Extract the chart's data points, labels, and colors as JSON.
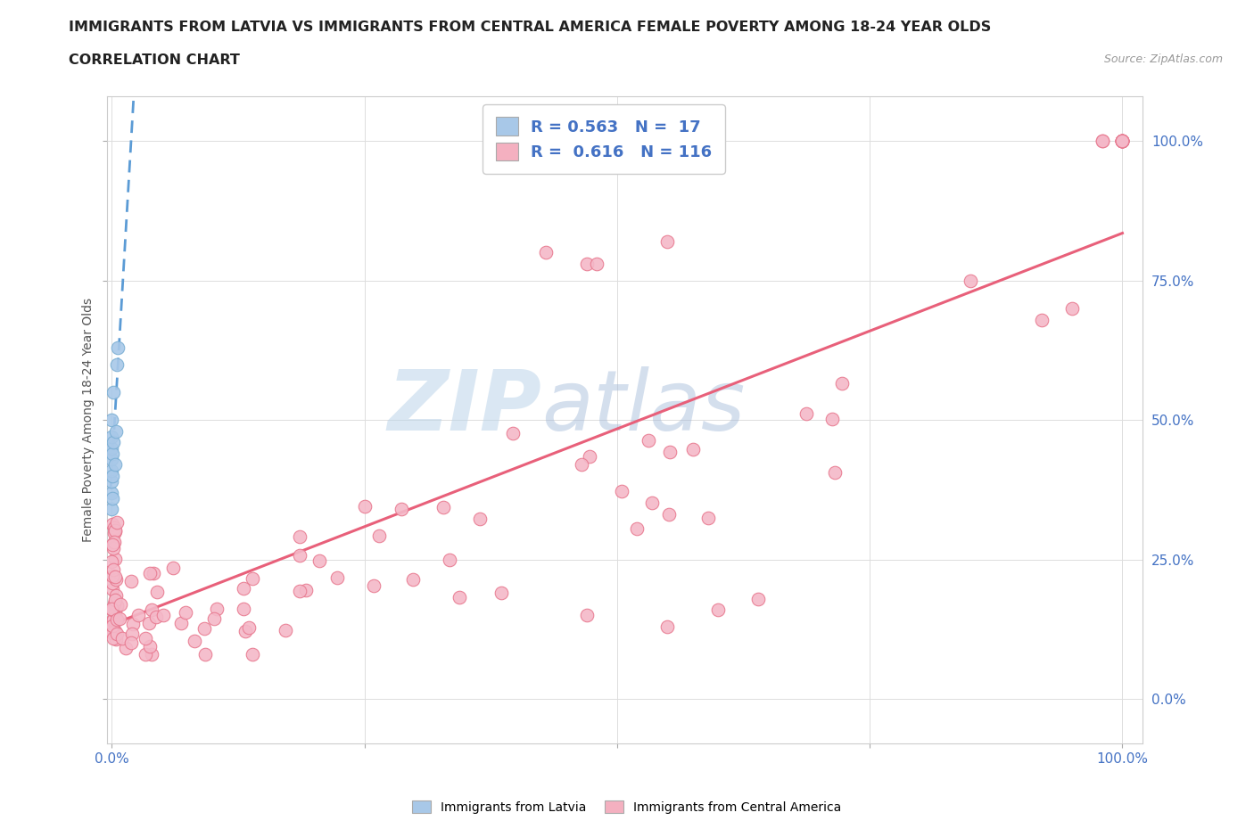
{
  "title": "IMMIGRANTS FROM LATVIA VS IMMIGRANTS FROM CENTRAL AMERICA FEMALE POVERTY AMONG 18-24 YEAR OLDS",
  "subtitle": "CORRELATION CHART",
  "source": "Source: ZipAtlas.com",
  "ylabel": "Female Poverty Among 18-24 Year Olds",
  "xlim": [
    -0.005,
    1.02
  ],
  "ylim": [
    -0.08,
    1.08
  ],
  "latvia_color": "#A8C8E8",
  "latvia_edge_color": "#7BAFD4",
  "central_america_color": "#F4B8C8",
  "central_america_edge_color": "#E87A90",
  "latvia_R": 0.563,
  "latvia_N": 17,
  "central_america_R": 0.616,
  "central_america_N": 116,
  "trend_latvia_color": "#5B9BD5",
  "trend_central_color": "#E8607A",
  "background_color": "#FFFFFF",
  "grid_color": "#DDDDDD",
  "legend_color_box_latvia": "#A8C8E8",
  "legend_color_box_central": "#F4B0C0",
  "title_fontsize": 11.5,
  "subtitle_fontsize": 11.5,
  "axis_label_fontsize": 10,
  "tick_fontsize": 10,
  "legend_fontsize": 13,
  "watermark_zip": "ZIP",
  "watermark_atlas": "atlas",
  "bottom_legend_latvia": "Immigrants from Latvia",
  "bottom_legend_ca": "Immigrants from Central America"
}
